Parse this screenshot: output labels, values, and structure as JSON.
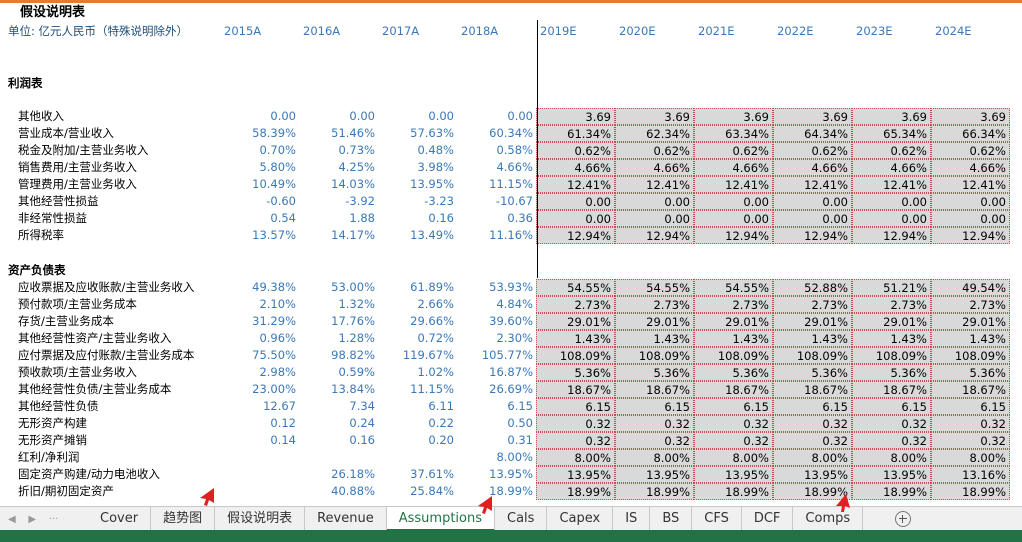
{
  "header": {
    "title": "假设说明表",
    "unit": "单位: 亿元人民币（特殊说明除外）",
    "years": [
      "2015A",
      "2016A",
      "2017A",
      "2018A",
      "2019E",
      "2020E",
      "2021E",
      "2022E",
      "2023E",
      "2024E"
    ],
    "first_forecast": "2019E"
  },
  "sections": [
    {
      "title": "利润表",
      "rows": [
        {
          "label": "其他收入",
          "values": [
            "0.00",
            "0.00",
            "0.00",
            "0.00",
            "3.69",
            "3.69",
            "3.69",
            "3.69",
            "3.69",
            "3.69"
          ]
        },
        {
          "label": "营业成本/营业收入",
          "values": [
            "58.39%",
            "51.46%",
            "57.63%",
            "60.34%",
            "61.34%",
            "62.34%",
            "63.34%",
            "64.34%",
            "65.34%",
            "66.34%"
          ]
        },
        {
          "label": "税金及附加/主营业务收入",
          "values": [
            "0.70%",
            "0.73%",
            "0.48%",
            "0.58%",
            "0.62%",
            "0.62%",
            "0.62%",
            "0.62%",
            "0.62%",
            "0.62%"
          ]
        },
        {
          "label": "销售费用/主营业务收入",
          "values": [
            "5.80%",
            "4.25%",
            "3.98%",
            "4.66%",
            "4.66%",
            "4.66%",
            "4.66%",
            "4.66%",
            "4.66%",
            "4.66%"
          ]
        },
        {
          "label": "管理费用/主营业务收入",
          "values": [
            "10.49%",
            "14.03%",
            "13.95%",
            "11.15%",
            "12.41%",
            "12.41%",
            "12.41%",
            "12.41%",
            "12.41%",
            "12.41%"
          ]
        },
        {
          "label": "其他经营性损益",
          "values": [
            "-0.60",
            "-3.92",
            "-3.23",
            "-10.67",
            "0.00",
            "0.00",
            "0.00",
            "0.00",
            "0.00",
            "0.00"
          ]
        },
        {
          "label": "非经常性损益",
          "values": [
            "0.54",
            "1.88",
            "0.16",
            "0.36",
            "0.00",
            "0.00",
            "0.00",
            "0.00",
            "0.00",
            "0.00"
          ]
        },
        {
          "label": "所得税率",
          "values": [
            "13.57%",
            "14.17%",
            "13.49%",
            "11.16%",
            "12.94%",
            "12.94%",
            "12.94%",
            "12.94%",
            "12.94%",
            "12.94%"
          ]
        }
      ]
    },
    {
      "title": "资产负债表",
      "rows": [
        {
          "label": "应收票据及应收账款/主营业务收入",
          "values": [
            "49.38%",
            "53.00%",
            "61.89%",
            "53.93%",
            "54.55%",
            "54.55%",
            "54.55%",
            "52.88%",
            "51.21%",
            "49.54%"
          ]
        },
        {
          "label": "预付款项/主营业务成本",
          "values": [
            "2.10%",
            "1.32%",
            "2.66%",
            "4.84%",
            "2.73%",
            "2.73%",
            "2.73%",
            "2.73%",
            "2.73%",
            "2.73%"
          ]
        },
        {
          "label": "存货/主营业务成本",
          "values": [
            "31.29%",
            "17.76%",
            "29.66%",
            "39.60%",
            "29.01%",
            "29.01%",
            "29.01%",
            "29.01%",
            "29.01%",
            "29.01%"
          ]
        },
        {
          "label": "其他经营性资产/主营业务收入",
          "values": [
            "0.96%",
            "1.28%",
            "0.72%",
            "2.30%",
            "1.43%",
            "1.43%",
            "1.43%",
            "1.43%",
            "1.43%",
            "1.43%"
          ]
        },
        {
          "label": "应付票据及应付账款/主营业务成本",
          "values": [
            "75.50%",
            "98.82%",
            "119.67%",
            "105.77%",
            "108.09%",
            "108.09%",
            "108.09%",
            "108.09%",
            "108.09%",
            "108.09%"
          ]
        },
        {
          "label": "预收款项/主营业务收入",
          "values": [
            "2.98%",
            "0.59%",
            "1.02%",
            "16.87%",
            "5.36%",
            "5.36%",
            "5.36%",
            "5.36%",
            "5.36%",
            "5.36%"
          ]
        },
        {
          "label": "其他经营性负债/主营业务成本",
          "values": [
            "23.00%",
            "13.84%",
            "11.15%",
            "26.69%",
            "18.67%",
            "18.67%",
            "18.67%",
            "18.67%",
            "18.67%",
            "18.67%"
          ]
        },
        {
          "label": "其他经营性负债",
          "values": [
            "12.67",
            "7.34",
            "6.11",
            "6.15",
            "6.15",
            "6.15",
            "6.15",
            "6.15",
            "6.15",
            "6.15"
          ]
        },
        {
          "label": "无形资产构建",
          "values": [
            "0.12",
            "0.24",
            "0.22",
            "0.50",
            "0.32",
            "0.32",
            "0.32",
            "0.32",
            "0.32",
            "0.32"
          ]
        },
        {
          "label": "无形资产摊销",
          "values": [
            "0.14",
            "0.16",
            "0.20",
            "0.31",
            "0.32",
            "0.32",
            "0.32",
            "0.32",
            "0.32",
            "0.32"
          ]
        },
        {
          "label": "红利/净利润",
          "values": [
            null,
            null,
            null,
            "8.00%",
            "8.00%",
            "8.00%",
            "8.00%",
            "8.00%",
            "8.00%",
            "8.00%"
          ]
        },
        {
          "label": "固定资产购建/动力电池收入",
          "values": [
            null,
            "26.18%",
            "37.61%",
            "13.95%",
            "13.95%",
            "13.95%",
            "13.95%",
            "13.95%",
            "13.95%",
            "13.16%"
          ]
        },
        {
          "label": "折旧/期初固定资产",
          "values": [
            null,
            "40.88%",
            "25.84%",
            "18.99%",
            "18.99%",
            "18.99%",
            "18.99%",
            "18.99%",
            "18.99%",
            "18.99%"
          ]
        }
      ]
    }
  ],
  "tabs": [
    "Cover",
    "趋势图",
    "假设说明表",
    "Revenue",
    "Assumptions",
    "Cals",
    "Capex",
    "IS",
    "BS",
    "CFS",
    "DCF",
    "Comps"
  ],
  "active_tab": "Assumptions"
}
